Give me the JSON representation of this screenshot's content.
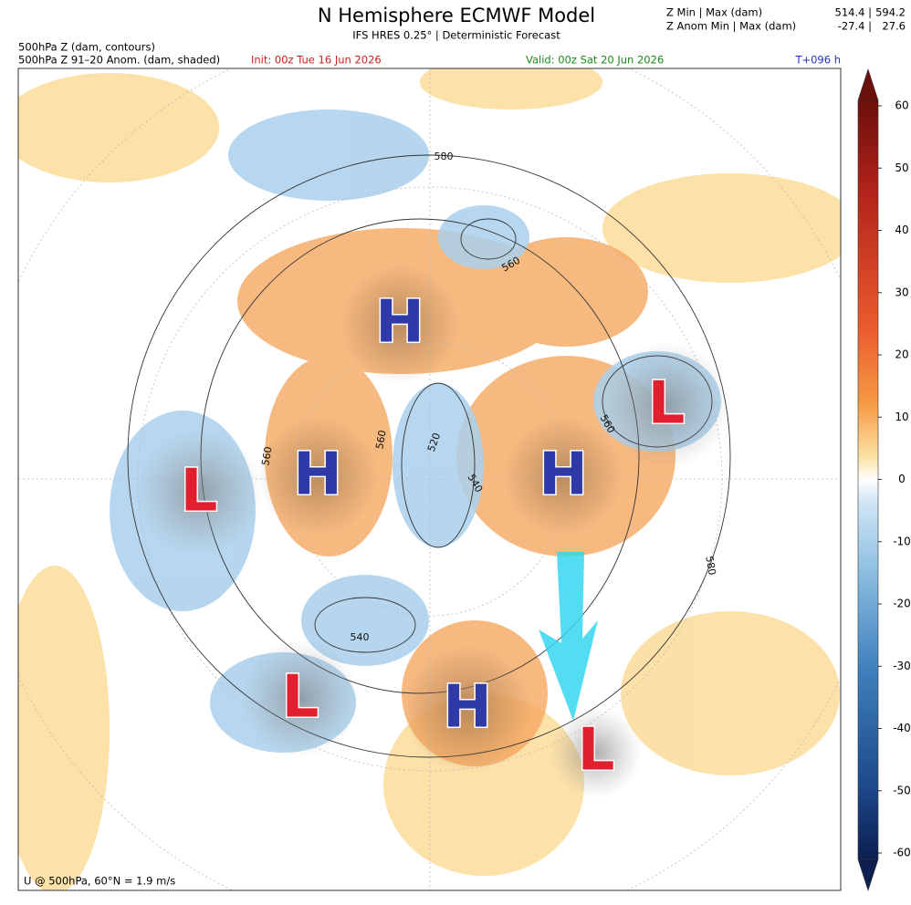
{
  "header": {
    "title": "N Hemisphere ECMWF Model",
    "subtitle": "IFS HRES 0.25° | Deterministic Forecast",
    "stats": [
      {
        "label": "Z Min | Max (dam)",
        "min": "514.4 |",
        "max": "594.2"
      },
      {
        "label": "Z Anom Min | Max (dam)",
        "min": "-27.4 |",
        "max": "27.6"
      }
    ]
  },
  "fields": [
    "500hPa Z (dam, contours)",
    "500hPa Z 91–20 Anom. (dam, shaded)"
  ],
  "init": "Init: 00z Tue 16 Jun 2026",
  "valid": "Valid: 00z Sat 20 Jun 2026",
  "lead": "T+096 h",
  "map": {
    "systems": [
      "H",
      "H",
      "H",
      "H",
      "L",
      "L",
      "L",
      "L"
    ],
    "contour_labels": [
      "580",
      "560",
      "560",
      "560",
      "520",
      "540",
      "560",
      "540",
      "580"
    ],
    "footnote": "U @ 500hPa, 60°N =  1.9 m/s"
  },
  "colorbar": {
    "ticks": [
      60,
      50,
      40,
      30,
      20,
      10,
      0,
      -10,
      -20,
      -30,
      -40,
      -50,
      -60
    ]
  }
}
